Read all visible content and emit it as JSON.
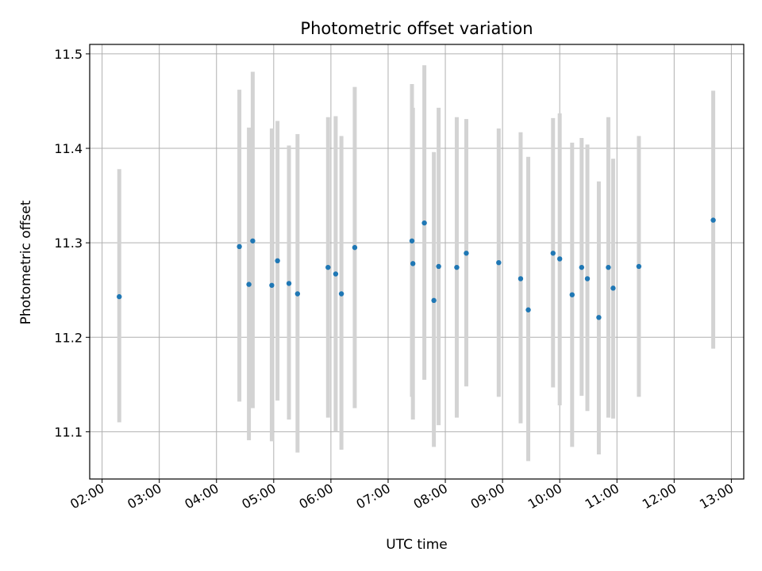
{
  "chart_data": {
    "type": "scatter",
    "title": "Photometric offset variation",
    "xlabel": "UTC time",
    "ylabel": "Photometric offset",
    "x_axis_type": "time",
    "xlim": [
      "01:47",
      "13:13"
    ],
    "ylim": [
      11.05,
      11.51
    ],
    "x_ticks": [
      "02:00",
      "03:00",
      "04:00",
      "05:00",
      "06:00",
      "07:00",
      "08:00",
      "09:00",
      "10:00",
      "11:00",
      "12:00",
      "13:00"
    ],
    "y_ticks": [
      "11.1",
      "11.2",
      "11.3",
      "11.4",
      "11.5"
    ],
    "grid": true,
    "point_color": "#1f77b4",
    "errorbar_color": "#d3d3d3",
    "points": [
      {
        "x": "02:18",
        "y": 11.243,
        "ylow": 11.11,
        "yhigh": 11.378
      },
      {
        "x": "04:24",
        "y": 11.296,
        "ylow": 11.132,
        "yhigh": 11.462
      },
      {
        "x": "04:34",
        "y": 11.256,
        "ylow": 11.091,
        "yhigh": 11.422
      },
      {
        "x": "04:38",
        "y": 11.302,
        "ylow": 11.125,
        "yhigh": 11.481
      },
      {
        "x": "04:58",
        "y": 11.255,
        "ylow": 11.09,
        "yhigh": 11.421
      },
      {
        "x": "05:04",
        "y": 11.281,
        "ylow": 11.133,
        "yhigh": 11.429
      },
      {
        "x": "05:16",
        "y": 11.257,
        "ylow": 11.113,
        "yhigh": 11.403
      },
      {
        "x": "05:25",
        "y": 11.246,
        "ylow": 11.078,
        "yhigh": 11.415
      },
      {
        "x": "05:57",
        "y": 11.274,
        "ylow": 11.115,
        "yhigh": 11.433
      },
      {
        "x": "06:05",
        "y": 11.267,
        "ylow": 11.1,
        "yhigh": 11.434
      },
      {
        "x": "06:11",
        "y": 11.246,
        "ylow": 11.081,
        "yhigh": 11.413
      },
      {
        "x": "06:25",
        "y": 11.295,
        "ylow": 11.125,
        "yhigh": 11.465
      },
      {
        "x": "07:25",
        "y": 11.302,
        "ylow": 11.137,
        "yhigh": 11.468
      },
      {
        "x": "07:26",
        "y": 11.278,
        "ylow": 11.113,
        "yhigh": 11.443
      },
      {
        "x": "07:38",
        "y": 11.321,
        "ylow": 11.155,
        "yhigh": 11.488
      },
      {
        "x": "07:48",
        "y": 11.239,
        "ylow": 11.084,
        "yhigh": 11.396
      },
      {
        "x": "07:53",
        "y": 11.275,
        "ylow": 11.107,
        "yhigh": 11.443
      },
      {
        "x": "08:12",
        "y": 11.274,
        "ylow": 11.115,
        "yhigh": 11.433
      },
      {
        "x": "08:22",
        "y": 11.289,
        "ylow": 11.148,
        "yhigh": 11.431
      },
      {
        "x": "08:56",
        "y": 11.279,
        "ylow": 11.137,
        "yhigh": 11.421
      },
      {
        "x": "09:19",
        "y": 11.262,
        "ylow": 11.109,
        "yhigh": 11.417
      },
      {
        "x": "09:27",
        "y": 11.229,
        "ylow": 11.069,
        "yhigh": 11.391
      },
      {
        "x": "09:53",
        "y": 11.289,
        "ylow": 11.147,
        "yhigh": 11.432
      },
      {
        "x": "10:00",
        "y": 11.283,
        "ylow": 11.128,
        "yhigh": 11.437
      },
      {
        "x": "10:13",
        "y": 11.245,
        "ylow": 11.084,
        "yhigh": 11.406
      },
      {
        "x": "10:23",
        "y": 11.274,
        "ylow": 11.138,
        "yhigh": 11.411
      },
      {
        "x": "10:29",
        "y": 11.262,
        "ylow": 11.122,
        "yhigh": 11.404
      },
      {
        "x": "10:41",
        "y": 11.221,
        "ylow": 11.076,
        "yhigh": 11.365
      },
      {
        "x": "10:51",
        "y": 11.274,
        "ylow": 11.115,
        "yhigh": 11.433
      },
      {
        "x": "10:56",
        "y": 11.252,
        "ylow": 11.114,
        "yhigh": 11.389
      },
      {
        "x": "11:23",
        "y": 11.275,
        "ylow": 11.137,
        "yhigh": 11.413
      },
      {
        "x": "12:41",
        "y": 11.324,
        "ylow": 11.188,
        "yhigh": 11.461
      }
    ]
  }
}
